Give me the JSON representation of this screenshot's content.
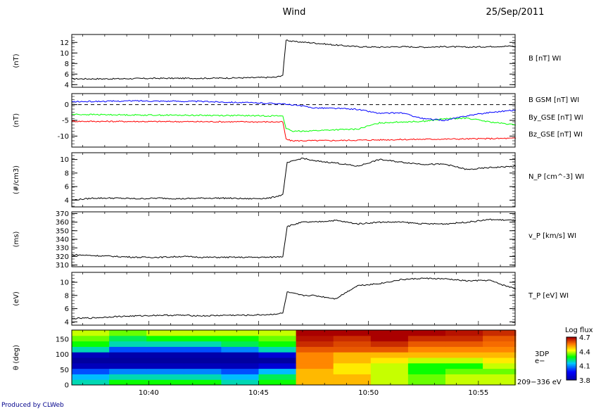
{
  "header": {
    "title": "Wind",
    "date": "25/Sep/2011"
  },
  "footer": {
    "credit": "Produced by CLWeb"
  },
  "time_axis": {
    "start": "10:36:30",
    "end": "10:56:40",
    "tick_labels": [
      "10:40",
      "10:45",
      "10:50",
      "10:55"
    ]
  },
  "chart_data": [
    {
      "id": "bmag",
      "type": "line",
      "ylabel": "(nT)",
      "ylim": [
        3.5,
        13.5
      ],
      "yticks": [
        4,
        6,
        8,
        10,
        12
      ],
      "series": [
        {
          "name": "B [nT] WI",
          "color": "#000000",
          "shock_time": "10:46:15",
          "pre": 5.1,
          "post_peak": 12.2,
          "values": [
            [
              0,
              5.1
            ],
            [
              2,
              5.1
            ],
            [
              4,
              5.2
            ],
            [
              6,
              5.2
            ],
            [
              8,
              5.3
            ],
            [
              9.3,
              5.4
            ],
            [
              9.6,
              5.8
            ],
            [
              9.75,
              12.5
            ],
            [
              10,
              12.2
            ],
            [
              11,
              11.9
            ],
            [
              12,
              11.5
            ],
            [
              13,
              11.2
            ],
            [
              14,
              11.1
            ],
            [
              15,
              11.2
            ],
            [
              16,
              11.1
            ],
            [
              17,
              11.2
            ],
            [
              18,
              11.1
            ],
            [
              19,
              11.2
            ],
            [
              20,
              11.3
            ],
            [
              20.2,
              11.2
            ]
          ]
        }
      ]
    },
    {
      "id": "bgsm",
      "type": "line",
      "ylabel": "(nT)",
      "ylim": [
        -13.5,
        3.5
      ],
      "yticks": [
        0,
        -5,
        -10
      ],
      "zero_line": true,
      "series": [
        {
          "name": "B GSM [nT] WI",
          "color": "#ff0000",
          "values": [
            [
              0,
              -5.3
            ],
            [
              5,
              -5.4
            ],
            [
              9.6,
              -5.5
            ],
            [
              9.75,
              -11
            ],
            [
              10,
              -11.5
            ],
            [
              12,
              -11.4
            ],
            [
              14,
              -11.2
            ],
            [
              16,
              -11.0
            ],
            [
              18,
              -10.9
            ],
            [
              20.2,
              -10.7
            ]
          ]
        },
        {
          "name": "By_GSE [nT] WI",
          "color": "#00ff00",
          "values": [
            [
              0,
              -3.1
            ],
            [
              3,
              -3.3
            ],
            [
              6,
              -3.4
            ],
            [
              9.6,
              -3.6
            ],
            [
              9.75,
              -7.5
            ],
            [
              10,
              -8.5
            ],
            [
              11,
              -8.3
            ],
            [
              12,
              -8.0
            ],
            [
              13,
              -7.8
            ],
            [
              14,
              -5.8
            ],
            [
              15,
              -5.5
            ],
            [
              16,
              -5.3
            ],
            [
              17,
              -4.5
            ],
            [
              18,
              -4.3
            ],
            [
              19,
              -5.5
            ],
            [
              20.2,
              -6.5
            ]
          ]
        },
        {
          "name": "Bz_GSE [nT] WI",
          "color": "#0000ff",
          "values": [
            [
              0,
              0.9
            ],
            [
              3,
              1.2
            ],
            [
              6,
              1.0
            ],
            [
              9.6,
              0.3
            ],
            [
              9.75,
              0.0
            ],
            [
              10,
              0.0
            ],
            [
              11,
              -1.0
            ],
            [
              12,
              -1.2
            ],
            [
              13,
              -1.5
            ],
            [
              14,
              -2.8
            ],
            [
              15,
              -2.6
            ],
            [
              16,
              -4.5
            ],
            [
              17,
              -5.0
            ],
            [
              18,
              -3.5
            ],
            [
              19,
              -2.5
            ],
            [
              20.2,
              -1.7
            ]
          ]
        }
      ]
    },
    {
      "id": "np",
      "type": "line",
      "ylabel": "(#/cm3)",
      "ylim": [
        3,
        11
      ],
      "yticks": [
        4,
        6,
        8,
        10
      ],
      "series": [
        {
          "name": "N_P [cm^-3] WI",
          "color": "#000000",
          "values": [
            [
              0,
              4.0
            ],
            [
              1,
              4.3
            ],
            [
              2,
              4.3
            ],
            [
              3,
              4.2
            ],
            [
              4,
              4.3
            ],
            [
              5,
              4.2
            ],
            [
              6,
              4.3
            ],
            [
              7,
              4.3
            ],
            [
              8,
              4.2
            ],
            [
              9,
              4.3
            ],
            [
              9.6,
              4.8
            ],
            [
              9.8,
              9.5
            ],
            [
              10.5,
              10.2
            ],
            [
              11,
              9.8
            ],
            [
              12,
              9.5
            ],
            [
              13,
              9.0
            ],
            [
              14,
              10.0
            ],
            [
              15,
              9.6
            ],
            [
              16,
              9.3
            ],
            [
              17,
              9.3
            ],
            [
              18,
              8.5
            ],
            [
              19,
              8.8
            ],
            [
              20.2,
              9.0
            ]
          ]
        }
      ]
    },
    {
      "id": "vp",
      "type": "line",
      "ylabel": "(ms)",
      "ylim": [
        308,
        372
      ],
      "yticks": [
        310,
        320,
        330,
        340,
        350,
        360,
        370
      ],
      "series": [
        {
          "name": "v_P [km/s] WI",
          "color": "#000000",
          "values": [
            [
              0,
              322
            ],
            [
              1,
              321
            ],
            [
              2,
              320
            ],
            [
              3,
              319
            ],
            [
              4,
              319
            ],
            [
              5,
              320
            ],
            [
              6,
              319
            ],
            [
              7,
              319
            ],
            [
              8,
              319
            ],
            [
              9,
              319
            ],
            [
              9.6,
              320
            ],
            [
              9.8,
              355
            ],
            [
              10.5,
              360
            ],
            [
              11,
              360
            ],
            [
              12,
              362
            ],
            [
              13,
              358
            ],
            [
              14,
              360
            ],
            [
              15,
              360
            ],
            [
              16,
              358
            ],
            [
              17,
              358
            ],
            [
              18,
              360
            ],
            [
              19,
              363
            ],
            [
              20.2,
              362
            ]
          ]
        }
      ]
    },
    {
      "id": "tp",
      "type": "line",
      "ylabel": "(eV)",
      "ylim": [
        3.5,
        11.5
      ],
      "yticks": [
        4,
        6,
        8,
        10
      ],
      "series": [
        {
          "name": "T_P [eV] WI",
          "color": "#000000",
          "values": [
            [
              0,
              4.5
            ],
            [
              1,
              4.6
            ],
            [
              2,
              4.8
            ],
            [
              3,
              4.9
            ],
            [
              4,
              5.0
            ],
            [
              5,
              5.0
            ],
            [
              6,
              4.9
            ],
            [
              7,
              5.0
            ],
            [
              8,
              5.0
            ],
            [
              9,
              5.1
            ],
            [
              9.6,
              5.3
            ],
            [
              9.8,
              8.5
            ],
            [
              10.5,
              8.0
            ],
            [
              11,
              8.0
            ],
            [
              12,
              7.5
            ],
            [
              13,
              9.5
            ],
            [
              14,
              9.8
            ],
            [
              15,
              10.4
            ],
            [
              16,
              10.6
            ],
            [
              17,
              10.5
            ],
            [
              18,
              10.2
            ],
            [
              19,
              10.3
            ],
            [
              19.6,
              9.6
            ],
            [
              20.2,
              9.0
            ]
          ]
        }
      ]
    },
    {
      "id": "spec",
      "type": "heatmap",
      "ylabel": "θ (deg)",
      "ylim": [
        0,
        180
      ],
      "yticks": [
        0,
        50,
        100,
        150
      ],
      "right_label": "3DP",
      "right_label2": "e−",
      "energy_label": "209−336 eV",
      "colorbar": {
        "title": "Log flux",
        "min": 3.8,
        "max": 4.7,
        "ticks": [
          "4.7",
          "4.4",
          "4.1",
          "3.8"
        ]
      },
      "x_edges": [
        0,
        1.7,
        3.4,
        5.1,
        6.8,
        8.5,
        10.2,
        11.9,
        13.6,
        15.3,
        17.0,
        18.7,
        20.2
      ],
      "y_edges": [
        0,
        18,
        36,
        54,
        72,
        90,
        108,
        126,
        144,
        162,
        180
      ],
      "z": [
        [
          4.2,
          4.3,
          4.3,
          4.3,
          4.2,
          4.3,
          4.5,
          4.5,
          4.4,
          4.35,
          4.4,
          4.4
        ],
        [
          4.15,
          4.2,
          4.2,
          4.2,
          4.15,
          4.25,
          4.5,
          4.5,
          4.4,
          4.35,
          4.4,
          4.4
        ],
        [
          4.05,
          4.1,
          4.1,
          4.1,
          4.05,
          4.15,
          4.5,
          4.45,
          4.4,
          4.3,
          4.35,
          4.35
        ],
        [
          3.85,
          3.85,
          3.85,
          3.85,
          3.85,
          3.9,
          4.55,
          4.45,
          4.4,
          4.3,
          4.3,
          4.4
        ],
        [
          3.8,
          3.8,
          3.8,
          3.8,
          3.8,
          3.8,
          4.55,
          4.5,
          4.45,
          4.4,
          4.4,
          4.45
        ],
        [
          3.85,
          3.82,
          3.82,
          3.82,
          3.82,
          3.9,
          4.55,
          4.5,
          4.5,
          4.5,
          4.5,
          4.5
        ],
        [
          4.2,
          4.05,
          4.05,
          4.05,
          4.1,
          4.2,
          4.6,
          4.6,
          4.6,
          4.55,
          4.55,
          4.55
        ],
        [
          4.3,
          4.2,
          4.2,
          4.2,
          4.25,
          4.3,
          4.65,
          4.62,
          4.65,
          4.6,
          4.6,
          4.58
        ],
        [
          4.35,
          4.25,
          4.3,
          4.3,
          4.3,
          4.35,
          4.68,
          4.65,
          4.7,
          4.65,
          4.65,
          4.6
        ],
        [
          4.4,
          4.35,
          4.4,
          4.4,
          4.4,
          4.4,
          4.7,
          4.7,
          4.7,
          4.7,
          4.68,
          4.65
        ]
      ]
    }
  ]
}
